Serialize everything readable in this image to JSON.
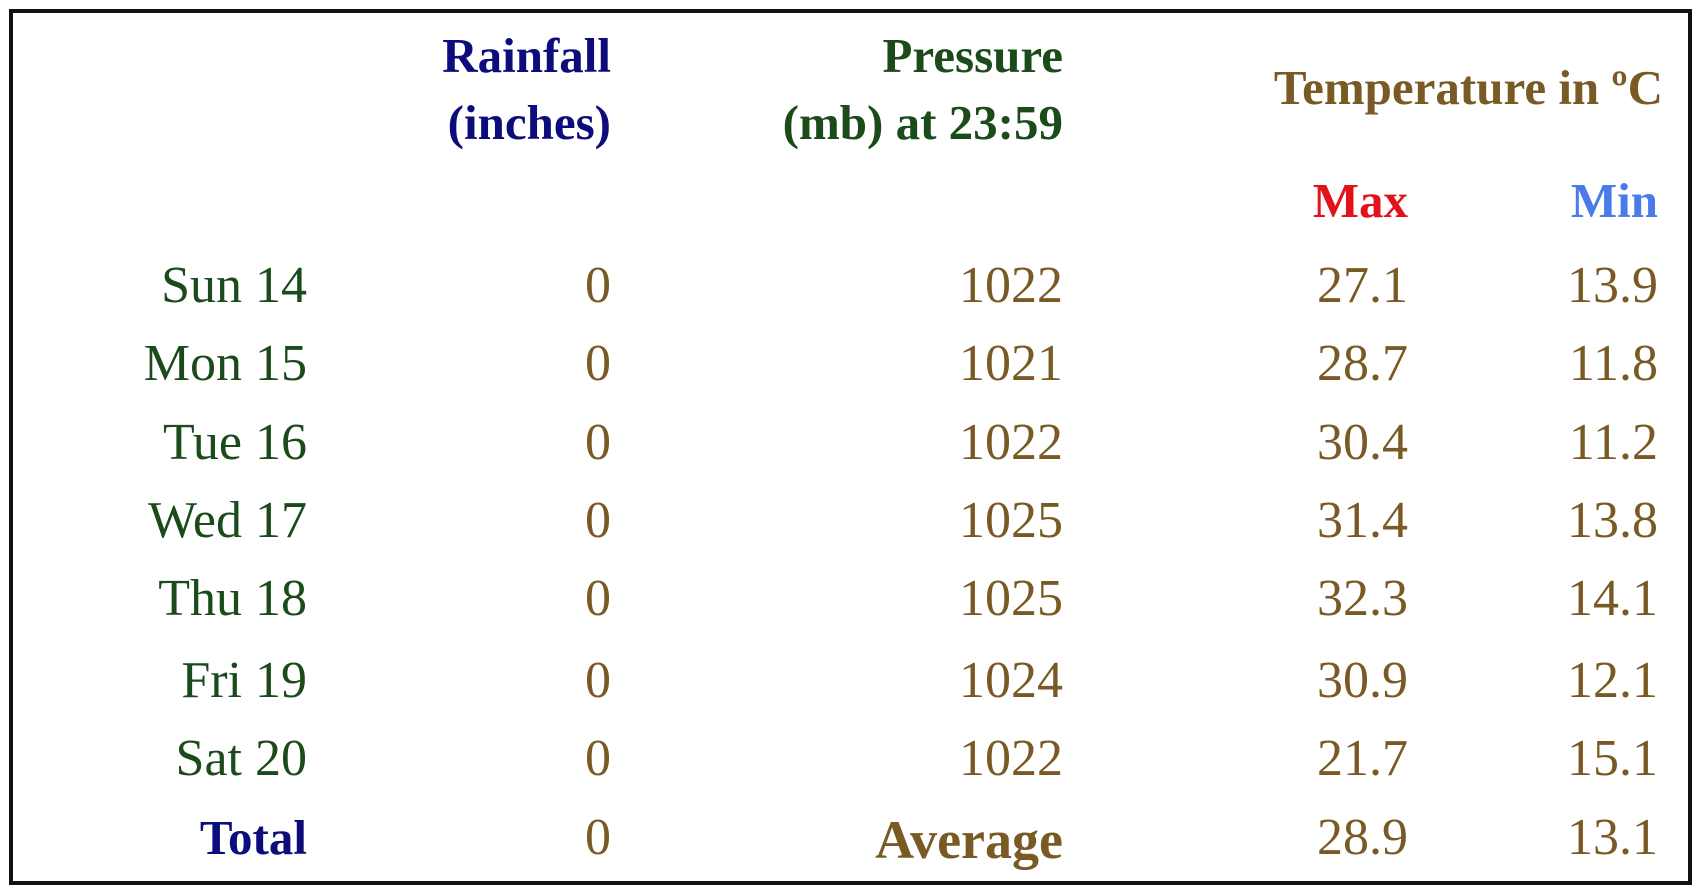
{
  "header": {
    "rainfall": [
      "Rainfall",
      "(inches)"
    ],
    "pressure": [
      "Pressure",
      "(mb) at 23:59"
    ],
    "temperature": "Temperature in ºC",
    "max": "Max",
    "min": "Min"
  },
  "table": {
    "rows": [
      [
        "Sun 14",
        0,
        1022,
        27.1,
        13.9
      ],
      [
        "Mon 15",
        0,
        1021,
        28.7,
        11.8
      ],
      [
        "Tue 16",
        0,
        1022,
        30.4,
        11.2
      ],
      [
        "Wed 17",
        0,
        1025,
        31.4,
        13.8
      ],
      [
        "Thu 18",
        0,
        1025,
        32.3,
        14.1
      ],
      [
        "Fri 19",
        0,
        1024,
        30.9,
        12.1
      ],
      [
        "Sat 20",
        0,
        1022,
        21.7,
        15.1
      ]
    ]
  },
  "footer": {
    "total": "Total",
    "rainfall": 0,
    "average": "Average",
    "max": 28.9,
    "min": 13.1
  }
}
